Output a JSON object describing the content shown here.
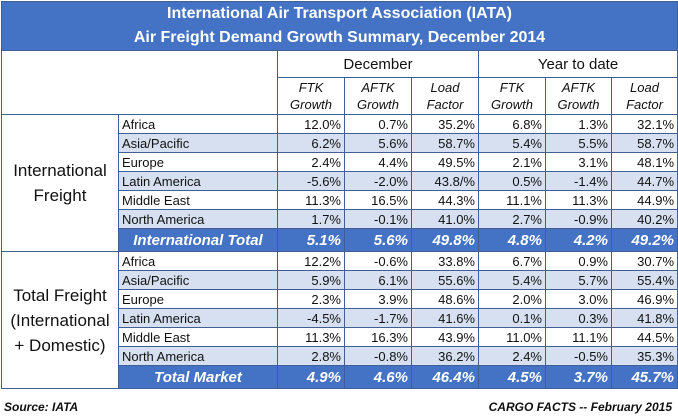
{
  "title": {
    "line1": "International Air Transport Association (IATA)",
    "line2": "Air Freight Demand Growth Summary, December 2014"
  },
  "headers": {
    "groups": [
      "December",
      "Year to date"
    ],
    "columns": [
      [
        "FTK",
        "Growth"
      ],
      [
        "AFTK",
        "Growth"
      ],
      [
        "Load",
        "Factor"
      ],
      [
        "FTK",
        "Growth"
      ],
      [
        "AFTK",
        "Growth"
      ],
      [
        "Load",
        "Factor"
      ]
    ]
  },
  "sections": [
    {
      "label_lines": [
        "International",
        "Freight"
      ],
      "rows": [
        {
          "region": "Africa",
          "values": [
            "12.0%",
            "0.7%",
            "35.2%",
            "6.8%",
            "1.3%",
            "32.1%"
          ]
        },
        {
          "region": "Asia/Pacific",
          "values": [
            "6.2%",
            "5.6%",
            "58.7%",
            "5.4%",
            "5.5%",
            "58.7%"
          ]
        },
        {
          "region": "Europe",
          "values": [
            "2.4%",
            "4.4%",
            "49.5%",
            "2.1%",
            "3.1%",
            "48.1%"
          ]
        },
        {
          "region": "Latin America",
          "values": [
            "-5.6%",
            "-2.0%",
            "43.8/%",
            "0.5%",
            "-1.4%",
            "44.7%"
          ]
        },
        {
          "region": "Middle East",
          "values": [
            "11.3%",
            "16.5%",
            "44.3%",
            "11.1%",
            "11.3%",
            "44.9%"
          ]
        },
        {
          "region": "North America",
          "values": [
            "1.7%",
            "-0.1%",
            "41.0%",
            "2.7%",
            "-0.9%",
            "40.2%"
          ]
        }
      ],
      "total": {
        "label": "International Total",
        "values": [
          "5.1%",
          "5.6%",
          "49.8%",
          "4.8%",
          "4.2%",
          "49.2%"
        ]
      }
    },
    {
      "label_lines": [
        "Total Freight",
        "(International",
        "+ Domestic)"
      ],
      "rows": [
        {
          "region": "Africa",
          "values": [
            "12.2%",
            "-0.6%",
            "33.8%",
            "6.7%",
            "0.9%",
            "30.7%"
          ]
        },
        {
          "region": "Asia/Pacific",
          "values": [
            "5.9%",
            "6.1%",
            "55.6%",
            "5.4%",
            "5.7%",
            "55.4%"
          ]
        },
        {
          "region": "Europe",
          "values": [
            "2.3%",
            "3.9%",
            "48.6%",
            "2.0%",
            "3.0%",
            "46.9%"
          ]
        },
        {
          "region": "Latin America",
          "values": [
            "-4.5%",
            "-1.7%",
            "41.6%",
            "0.1%",
            "0.3%",
            "41.8%"
          ]
        },
        {
          "region": "Middle East",
          "values": [
            "11.3%",
            "16.3%",
            "43.9%",
            "11.0%",
            "11.1%",
            "44.5%"
          ]
        },
        {
          "region": "North America",
          "values": [
            "2.8%",
            "-0.8%",
            "36.2%",
            "2.4%",
            "-0.5%",
            "35.3%"
          ]
        }
      ],
      "total": {
        "label": "Total Market",
        "values": [
          "4.9%",
          "4.6%",
          "46.4%",
          "4.5%",
          "3.7%",
          "45.7%"
        ]
      }
    }
  ],
  "footer": {
    "source": "Source: IATA",
    "credit": "CARGO FACTS -- February 2015"
  },
  "colors": {
    "header_blue": "#4472c4",
    "band_blue": "#d6e0f0",
    "border": "#3f5f95"
  }
}
